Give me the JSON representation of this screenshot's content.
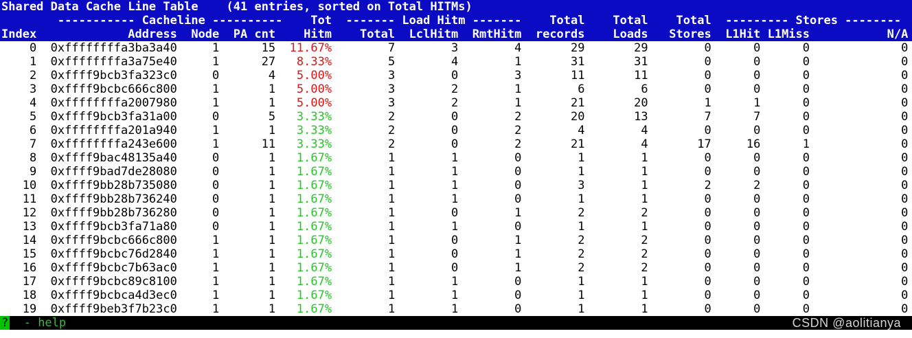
{
  "colors": {
    "header_bg": "#0b0bc4",
    "header_text": "#ffffff",
    "red": "#da1616",
    "green": "#27c427",
    "statusbar_bg": "#000000",
    "status_green": "#3fb43f",
    "help_key_bg": "#00c400",
    "watermark_gray": "#d4d4d4"
  },
  "terminal": {
    "title": "Shared Data Cache Line Table",
    "subtitle": "(41 entries, sorted on Total HITMs)",
    "group_line": "        ----------- Cacheline ----------    Tot  ------- Load Hitm -------    Total    Total    Total  --------- Stores --------",
    "columns": [
      "Index",
      "Address",
      "Node",
      "PA cnt",
      "Hitm",
      "Total",
      "LclHitm",
      "RmtHitm",
      "records",
      "Loads",
      "Stores",
      "L1Hit",
      "L1Miss",
      "N/A"
    ],
    "rows": [
      {
        "cells": [
          "0",
          "0xffffffffa3ba3a40",
          "1",
          "15",
          "11.67%",
          "7",
          "3",
          "4",
          "29",
          "29",
          "0",
          "0",
          "0",
          "0"
        ],
        "hitm_color": "red"
      },
      {
        "cells": [
          "1",
          "0xffffffffa3a75e40",
          "1",
          "27",
          "8.33%",
          "5",
          "4",
          "1",
          "31",
          "31",
          "0",
          "0",
          "0",
          "0"
        ],
        "hitm_color": "red"
      },
      {
        "cells": [
          "2",
          "0xffff9bcb3fa323c0",
          "0",
          "4",
          "5.00%",
          "3",
          "0",
          "3",
          "11",
          "11",
          "0",
          "0",
          "0",
          "0"
        ],
        "hitm_color": "red"
      },
      {
        "cells": [
          "3",
          "0xffff9bcbc666c800",
          "1",
          "1",
          "5.00%",
          "3",
          "2",
          "1",
          "6",
          "6",
          "0",
          "0",
          "0",
          "0"
        ],
        "hitm_color": "red"
      },
      {
        "cells": [
          "4",
          "0xffffffffa2007980",
          "1",
          "1",
          "5.00%",
          "3",
          "2",
          "1",
          "21",
          "20",
          "1",
          "1",
          "0",
          "0"
        ],
        "hitm_color": "red"
      },
      {
        "cells": [
          "5",
          "0xffff9bcb3fa31a00",
          "0",
          "5",
          "3.33%",
          "2",
          "0",
          "2",
          "20",
          "13",
          "7",
          "7",
          "0",
          "0"
        ],
        "hitm_color": "green"
      },
      {
        "cells": [
          "6",
          "0xffffffffa201a940",
          "1",
          "1",
          "3.33%",
          "2",
          "0",
          "2",
          "4",
          "4",
          "0",
          "0",
          "0",
          "0"
        ],
        "hitm_color": "green"
      },
      {
        "cells": [
          "7",
          "0xffffffffa243e600",
          "1",
          "11",
          "3.33%",
          "2",
          "0",
          "2",
          "21",
          "4",
          "17",
          "16",
          "1",
          "0"
        ],
        "hitm_color": "green"
      },
      {
        "cells": [
          "8",
          "0xffff9bac48135a40",
          "0",
          "1",
          "1.67%",
          "1",
          "1",
          "0",
          "1",
          "1",
          "0",
          "0",
          "0",
          "0"
        ],
        "hitm_color": "green"
      },
      {
        "cells": [
          "9",
          "0xffff9bad7de28080",
          "0",
          "1",
          "1.67%",
          "1",
          "1",
          "0",
          "1",
          "1",
          "0",
          "0",
          "0",
          "0"
        ],
        "hitm_color": "green"
      },
      {
        "cells": [
          "10",
          "0xffff9bb28b735080",
          "0",
          "1",
          "1.67%",
          "1",
          "1",
          "0",
          "3",
          "1",
          "2",
          "2",
          "0",
          "0"
        ],
        "hitm_color": "green"
      },
      {
        "cells": [
          "11",
          "0xffff9bb28b736240",
          "0",
          "1",
          "1.67%",
          "1",
          "1",
          "0",
          "1",
          "1",
          "0",
          "0",
          "0",
          "0"
        ],
        "hitm_color": "green"
      },
      {
        "cells": [
          "12",
          "0xffff9bb28b736280",
          "0",
          "1",
          "1.67%",
          "1",
          "0",
          "1",
          "2",
          "2",
          "0",
          "0",
          "0",
          "0"
        ],
        "hitm_color": "green"
      },
      {
        "cells": [
          "13",
          "0xffff9bcb3fa71a80",
          "0",
          "1",
          "1.67%",
          "1",
          "1",
          "0",
          "1",
          "1",
          "0",
          "0",
          "0",
          "0"
        ],
        "hitm_color": "green"
      },
      {
        "cells": [
          "14",
          "0xffff9bcbc666c800",
          "1",
          "1",
          "1.67%",
          "1",
          "0",
          "1",
          "2",
          "2",
          "0",
          "0",
          "0",
          "0"
        ],
        "hitm_color": "green"
      },
      {
        "cells": [
          "15",
          "0xffff9bcbc76d2840",
          "1",
          "1",
          "1.67%",
          "1",
          "0",
          "1",
          "2",
          "2",
          "0",
          "0",
          "0",
          "0"
        ],
        "hitm_color": "green"
      },
      {
        "cells": [
          "16",
          "0xffff9bcbc7b63ac0",
          "1",
          "1",
          "1.67%",
          "1",
          "0",
          "1",
          "2",
          "2",
          "0",
          "0",
          "0",
          "0"
        ],
        "hitm_color": "green"
      },
      {
        "cells": [
          "17",
          "0xffff9bcbc89c8100",
          "1",
          "1",
          "1.67%",
          "1",
          "1",
          "0",
          "1",
          "1",
          "0",
          "0",
          "0",
          "0"
        ],
        "hitm_color": "green"
      },
      {
        "cells": [
          "18",
          "0xffff9bcbca4d3ec0",
          "1",
          "1",
          "1.67%",
          "1",
          "1",
          "0",
          "1",
          "1",
          "0",
          "0",
          "0",
          "0"
        ],
        "hitm_color": "green"
      },
      {
        "cells": [
          "19",
          "0xffff9beb3f7b23c0",
          "1",
          "1",
          "1.67%",
          "1",
          "1",
          "0",
          "1",
          "1",
          "0",
          "0",
          "0",
          "0"
        ],
        "hitm_color": "green"
      }
    ]
  },
  "status_bar": {
    "key": "?",
    "hint": "- help"
  },
  "watermark": "CSDN @aolitianya"
}
